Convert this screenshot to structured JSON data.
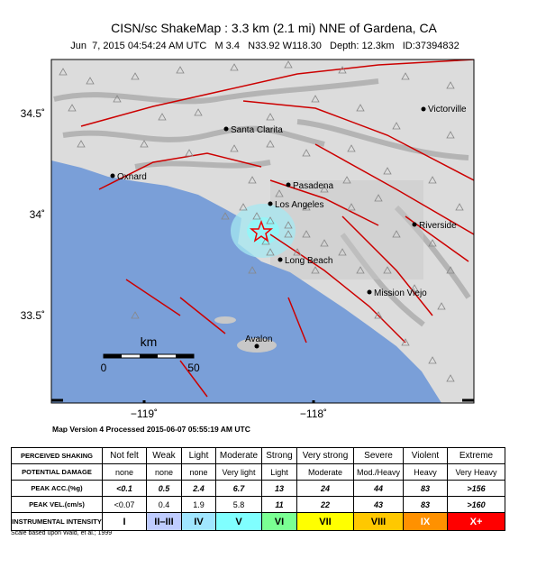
{
  "header": {
    "title": "CISN/sc ShakeMap : 3.3 km (2.1 mi) NNE of Gardena, CA",
    "subtitle": "Jun  7, 2015 04:54:24 AM UTC   M 3.4   N33.92 W118.30   Depth: 12.3km   ID:37394832"
  },
  "map": {
    "cities": [
      "Victorville",
      "Santa Clarita",
      "Oxnard",
      "Pasadena",
      "Los Angeles",
      "Riverside",
      "Long Beach",
      "Mission Viejo",
      "Avalon"
    ],
    "lat_labels": [
      "34.5˚",
      "34˚",
      "33.5˚"
    ],
    "lon_labels": [
      "−119˚",
      "−118˚"
    ],
    "scale": {
      "unit": "km",
      "ticks": [
        "0",
        "50"
      ]
    }
  },
  "processed": "Map Version 4 Processed 2015-06-07 05:55:19 AM UTC",
  "legend": {
    "rows": [
      {
        "label": "PERCEIVED SHAKING",
        "cells": [
          "Not felt",
          "Weak",
          "Light",
          "Moderate",
          "Strong",
          "Very strong",
          "Severe",
          "Violent",
          "Extreme"
        ]
      },
      {
        "label": "POTENTIAL DAMAGE",
        "cells": [
          "none",
          "none",
          "none",
          "Very light",
          "Light",
          "Moderate",
          "Mod./Heavy",
          "Heavy",
          "Very Heavy"
        ]
      },
      {
        "label": "PEAK ACC.(%g)",
        "cells": [
          "<0.1",
          "0.5",
          "2.4",
          "6.7",
          "13",
          "24",
          "44",
          "83",
          ">156"
        ]
      },
      {
        "label": "PEAK VEL.(cm/s)",
        "cells": [
          "<0.07",
          "0.4",
          "1.9",
          "5.8",
          "11",
          "22",
          "43",
          "83",
          ">160"
        ]
      },
      {
        "label": "INSTRUMENTAL INTENSITY",
        "cells": [
          "I",
          "II–III",
          "IV",
          "V",
          "VI",
          "VII",
          "VIII",
          "IX",
          "X+"
        ]
      }
    ],
    "credit": "Scale based upon Wald, et al.; 1999"
  }
}
